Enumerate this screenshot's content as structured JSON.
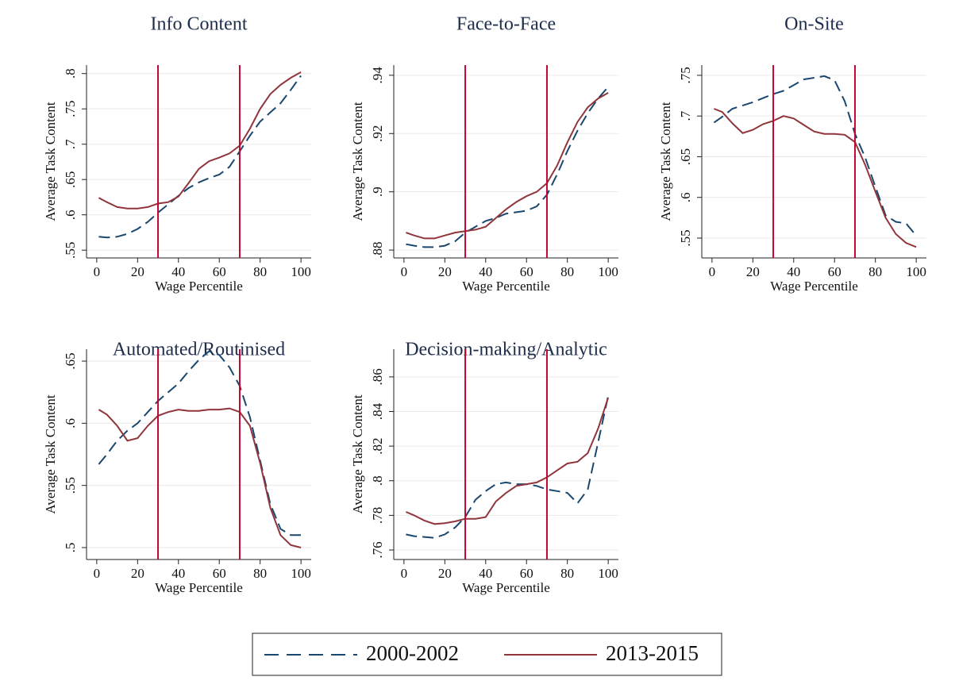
{
  "chart_data": [
    {
      "type": "line",
      "title": "Info Content",
      "xlabel": "Wage Percentile",
      "ylabel": "Average Task Content",
      "x": [
        1,
        5,
        10,
        15,
        20,
        25,
        30,
        35,
        40,
        45,
        50,
        55,
        60,
        65,
        70,
        75,
        80,
        85,
        90,
        95,
        100
      ],
      "series": [
        {
          "name": "2000-2002",
          "color": "#1a476f",
          "dash": true,
          "values": [
            0.569,
            0.568,
            0.569,
            0.573,
            0.58,
            0.59,
            0.603,
            0.615,
            0.627,
            0.638,
            0.646,
            0.652,
            0.657,
            0.668,
            0.69,
            0.712,
            0.732,
            0.745,
            0.758,
            0.777,
            0.797
          ]
        },
        {
          "name": "2013-2015",
          "color": "#90353b",
          "dash": false,
          "values": [
            0.624,
            0.618,
            0.611,
            0.609,
            0.609,
            0.611,
            0.616,
            0.618,
            0.626,
            0.645,
            0.665,
            0.676,
            0.681,
            0.687,
            0.698,
            0.722,
            0.75,
            0.771,
            0.784,
            0.794,
            0.802
          ]
        }
      ],
      "xlim": [
        -5,
        105
      ],
      "xticks": [
        0,
        20,
        40,
        60,
        80,
        100
      ],
      "ylim": [
        0.539,
        0.812
      ],
      "yticks": [
        {
          "value": 0.55,
          "label": ".55"
        },
        {
          "value": 0.6,
          "label": ".6"
        },
        {
          "value": 0.65,
          "label": ".65"
        },
        {
          "value": 0.7,
          "label": ".7"
        },
        {
          "value": 0.75,
          "label": ".75"
        },
        {
          "value": 0.8,
          "label": ".8"
        }
      ],
      "vlines": [
        30,
        70
      ],
      "vline_color": "#c10534",
      "grid": true,
      "legend": "bottom"
    },
    {
      "type": "line",
      "title": "Face-to-Face",
      "xlabel": "Wage Percentile",
      "ylabel": "Average Task Content",
      "x": [
        1,
        5,
        10,
        15,
        20,
        25,
        30,
        35,
        40,
        45,
        50,
        55,
        60,
        65,
        70,
        75,
        80,
        85,
        90,
        95,
        100
      ],
      "series": [
        {
          "color": "#1a476f",
          "dash": true,
          "values": [
            0.882,
            0.8815,
            0.881,
            0.881,
            0.8815,
            0.883,
            0.886,
            0.888,
            0.89,
            0.891,
            0.8925,
            0.893,
            0.8935,
            0.895,
            0.899,
            0.906,
            0.914,
            0.921,
            0.927,
            0.932,
            0.936
          ]
        },
        {
          "color": "#90353b",
          "dash": false,
          "values": [
            0.886,
            0.885,
            0.884,
            0.884,
            0.885,
            0.886,
            0.8865,
            0.887,
            0.888,
            0.891,
            0.894,
            0.8965,
            0.8985,
            0.9,
            0.903,
            0.909,
            0.917,
            0.924,
            0.929,
            0.932,
            0.934
          ]
        }
      ],
      "xlim": [
        -5,
        105
      ],
      "xticks": [
        0,
        20,
        40,
        60,
        80,
        100
      ],
      "ylim": [
        0.8773,
        0.9435
      ],
      "yticks": [
        {
          "value": 0.88,
          "label": ".88"
        },
        {
          "value": 0.9,
          "label": ".9"
        },
        {
          "value": 0.92,
          "label": ".92"
        },
        {
          "value": 0.94,
          "label": ".94"
        }
      ],
      "vlines": [
        30,
        70
      ],
      "vline_color": "#c10534",
      "grid": true
    },
    {
      "type": "line",
      "title": "On-Site",
      "xlabel": "Wage Percentile",
      "ylabel": "Average Task Content",
      "x": [
        1,
        5,
        10,
        15,
        20,
        25,
        30,
        35,
        40,
        45,
        50,
        55,
        60,
        65,
        70,
        75,
        80,
        85,
        90,
        95,
        100
      ],
      "series": [
        {
          "color": "#1a476f",
          "dash": true,
          "values": [
            0.692,
            0.699,
            0.709,
            0.713,
            0.717,
            0.722,
            0.727,
            0.731,
            0.738,
            0.745,
            0.747,
            0.749,
            0.744,
            0.718,
            0.678,
            0.649,
            0.613,
            0.578,
            0.57,
            0.568,
            0.553
          ]
        },
        {
          "color": "#90353b",
          "dash": false,
          "values": [
            0.709,
            0.705,
            0.691,
            0.679,
            0.683,
            0.69,
            0.694,
            0.7,
            0.697,
            0.689,
            0.681,
            0.678,
            0.678,
            0.677,
            0.668,
            0.64,
            0.607,
            0.575,
            0.555,
            0.544,
            0.539
          ]
        }
      ],
      "xlim": [
        -5,
        105
      ],
      "xticks": [
        0,
        20,
        40,
        60,
        80,
        100
      ],
      "ylim": [
        0.5256,
        0.7626
      ],
      "yticks": [
        {
          "value": 0.55,
          "label": ".55"
        },
        {
          "value": 0.6,
          "label": ".6"
        },
        {
          "value": 0.65,
          "label": ".65"
        },
        {
          "value": 0.7,
          "label": ".7"
        },
        {
          "value": 0.75,
          "label": ".75"
        }
      ],
      "vlines": [
        30,
        70
      ],
      "vline_color": "#c10534",
      "grid": true
    },
    {
      "type": "line",
      "title": "Automated/Routinised",
      "xlabel": "Wage Percentile",
      "ylabel": "Average Task Content",
      "x": [
        1,
        5,
        10,
        15,
        20,
        25,
        30,
        35,
        40,
        45,
        50,
        55,
        60,
        65,
        70,
        75,
        80,
        85,
        90,
        95,
        100
      ],
      "series": [
        {
          "color": "#1a476f",
          "dash": true,
          "values": [
            0.567,
            0.575,
            0.586,
            0.594,
            0.6,
            0.609,
            0.618,
            0.625,
            0.632,
            0.642,
            0.651,
            0.658,
            0.655,
            0.645,
            0.63,
            0.605,
            0.57,
            0.535,
            0.515,
            0.51,
            0.51
          ]
        },
        {
          "color": "#90353b",
          "dash": false,
          "values": [
            0.611,
            0.607,
            0.598,
            0.586,
            0.588,
            0.598,
            0.606,
            0.609,
            0.611,
            0.61,
            0.61,
            0.611,
            0.611,
            0.612,
            0.609,
            0.598,
            0.568,
            0.532,
            0.51,
            0.502,
            0.5
          ]
        }
      ],
      "xlim": [
        -5,
        105
      ],
      "xticks": [
        0,
        20,
        40,
        60,
        80,
        100
      ],
      "ylim": [
        0.4904,
        0.6596
      ],
      "yticks": [
        {
          "value": 0.5,
          "label": ".5"
        },
        {
          "value": 0.55,
          "label": ".55"
        },
        {
          "value": 0.6,
          "label": ".6"
        },
        {
          "value": 0.65,
          "label": ".65"
        }
      ],
      "vlines": [
        30,
        70
      ],
      "vline_color": "#c10534",
      "grid": true
    },
    {
      "type": "line",
      "title": "Decision-making/Analytic",
      "xlabel": "Wage Percentile",
      "ylabel": "Average Task Content",
      "x": [
        1,
        5,
        10,
        15,
        20,
        25,
        30,
        35,
        40,
        45,
        50,
        55,
        60,
        65,
        70,
        75,
        80,
        85,
        90,
        95,
        100
      ],
      "series": [
        {
          "color": "#1a476f",
          "dash": true,
          "values": [
            0.769,
            0.768,
            0.7675,
            0.767,
            0.769,
            0.773,
            0.779,
            0.789,
            0.794,
            0.798,
            0.799,
            0.798,
            0.798,
            0.797,
            0.795,
            0.794,
            0.793,
            0.787,
            0.795,
            0.822,
            0.849
          ]
        },
        {
          "color": "#90353b",
          "dash": false,
          "values": [
            0.782,
            0.78,
            0.777,
            0.775,
            0.7755,
            0.7765,
            0.778,
            0.778,
            0.779,
            0.788,
            0.793,
            0.797,
            0.798,
            0.799,
            0.802,
            0.806,
            0.81,
            0.811,
            0.816,
            0.83,
            0.848
          ]
        }
      ],
      "xlim": [
        -5,
        105
      ],
      "xticks": [
        0,
        20,
        40,
        60,
        80,
        100
      ],
      "ylim": [
        0.7545,
        0.876
      ],
      "yticks": [
        {
          "value": 0.76,
          "label": ".76"
        },
        {
          "value": 0.78,
          "label": ".78"
        },
        {
          "value": 0.8,
          "label": ".8"
        },
        {
          "value": 0.82,
          "label": ".82"
        },
        {
          "value": 0.84,
          "label": ".84"
        },
        {
          "value": 0.86,
          "label": ".86"
        }
      ],
      "vlines": [
        30,
        70
      ],
      "vline_color": "#c10534",
      "grid": true
    }
  ]
}
